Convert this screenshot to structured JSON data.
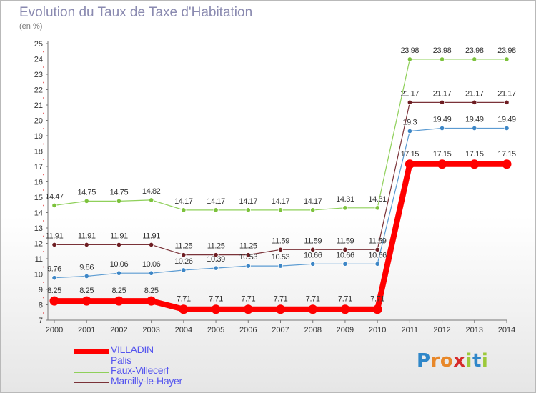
{
  "title": "Evolution du Taux de Taxe d'Habitation",
  "subtitle": "(en %)",
  "logo": {
    "text": "Proxiti",
    "colors": [
      "#2f87c9",
      "#e8882a",
      "#e8882a",
      "#d62b2b",
      "#9cc93a",
      "#2f87c9",
      "#9cc93a"
    ]
  },
  "chart_data": {
    "type": "line",
    "x": [
      "2000",
      "2001",
      "2002",
      "2003",
      "2004",
      "2005",
      "2006",
      "2007",
      "2008",
      "2009",
      "2010",
      "2011",
      "2012",
      "2013",
      "2014"
    ],
    "y_ticks": [
      "7",
      "8",
      "9",
      "10",
      "11",
      "12",
      "13",
      "14",
      "15",
      "16",
      "17",
      "18",
      "19",
      "20",
      "21",
      "22",
      "23",
      "24",
      "25"
    ],
    "ylim": [
      7,
      25
    ],
    "grid": false,
    "legend_position": "bottom-left",
    "series": [
      {
        "name": "Faux-Villecerf",
        "color": "#8fd05a",
        "fill": "#7cc23c",
        "width": 1.2,
        "values": [
          14.47,
          14.75,
          14.75,
          14.82,
          14.17,
          14.17,
          14.17,
          14.17,
          14.17,
          14.31,
          14.31,
          23.98,
          23.98,
          23.98,
          23.98
        ],
        "labels": [
          "14.47",
          "14.75",
          "14.75",
          "14.82",
          "14.17",
          "14.17",
          "14.17",
          "14.17",
          "14.17",
          "14.31",
          "14.31",
          "23.98",
          "23.98",
          "23.98",
          "23.98"
        ]
      },
      {
        "name": "Marcilly-le-Hayer",
        "color": "#7a3238",
        "fill": "#6e1d22",
        "width": 1.2,
        "values": [
          11.91,
          11.91,
          11.91,
          11.91,
          11.25,
          11.25,
          11.25,
          11.59,
          11.59,
          11.59,
          11.59,
          21.17,
          21.17,
          21.17,
          21.17
        ],
        "labels": [
          "11.91",
          "11.91",
          "11.91",
          "11.91",
          "11.25",
          "11.25",
          "11.25",
          "11.59",
          "11.59",
          "11.59",
          "11.59",
          "21.17",
          "21.17",
          "21.17",
          "21.17"
        ]
      },
      {
        "name": "Palis",
        "color": "#5b9bd2",
        "fill": "#3d86c6",
        "width": 1.2,
        "values": [
          9.76,
          9.86,
          10.06,
          10.06,
          10.26,
          10.39,
          10.53,
          10.53,
          10.66,
          10.66,
          10.66,
          19.3,
          19.49,
          19.49,
          19.49
        ],
        "labels": [
          "9.76",
          "9.86",
          "10.06",
          "10.06",
          "10.26",
          "10.39",
          "10.53",
          "10.53",
          "10.66",
          "10.66",
          "10.66",
          "19.3",
          "19.49",
          "19.49",
          "19.49"
        ]
      },
      {
        "name": "VILLADIN",
        "color": "#ff0000",
        "fill": "#ff0000",
        "width": 8,
        "values": [
          8.25,
          8.25,
          8.25,
          8.25,
          7.71,
          7.71,
          7.71,
          7.71,
          7.71,
          7.71,
          7.71,
          17.15,
          17.15,
          17.15,
          17.15
        ],
        "labels": [
          "8.25",
          "8.25",
          "8.25",
          "8.25",
          "7.71",
          "7.71",
          "7.71",
          "7.71",
          "7.71",
          "7.71",
          "7.71",
          "17.15",
          "17.15",
          "17.15",
          "17.15"
        ]
      }
    ],
    "legend": [
      {
        "name": "VILLADIN",
        "color": "#ff0000",
        "text_color": "#5555ee",
        "thickness": 8
      },
      {
        "name": "Palis",
        "color": "#5b9bd2",
        "text_color": "#5555ee",
        "thickness": 1.5
      },
      {
        "name": "Faux-Villecerf",
        "color": "#8fd05a",
        "text_color": "#5555ee",
        "thickness": 1.5
      },
      {
        "name": "Marcilly-le-Hayer",
        "color": "#7a3238",
        "text_color": "#5555ee",
        "thickness": 1.5
      }
    ]
  }
}
